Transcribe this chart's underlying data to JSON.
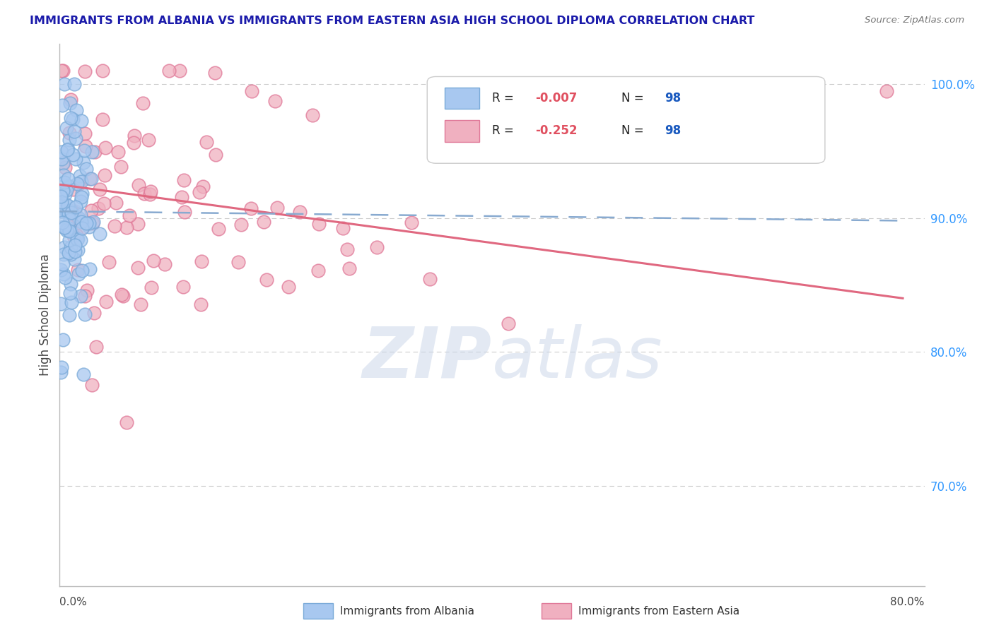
{
  "title": "IMMIGRANTS FROM ALBANIA VS IMMIGRANTS FROM EASTERN ASIA HIGH SCHOOL DIPLOMA CORRELATION CHART",
  "source": "Source: ZipAtlas.com",
  "ylabel": "High School Diploma",
  "yticks": [
    0.7,
    0.8,
    0.9,
    1.0
  ],
  "ytick_labels": [
    "70.0%",
    "80.0%",
    "90.0%",
    "100.0%"
  ],
  "xlim": [
    0.0,
    0.8
  ],
  "ylim": [
    0.625,
    1.03
  ],
  "legend_r1": "R = ",
  "legend_v1": "-0.007",
  "legend_n1": "N = ",
  "legend_nv1": "98",
  "legend_r2": "R = ",
  "legend_v2": "-0.252",
  "legend_n2": "N = ",
  "legend_nv2": "98",
  "color_albania": "#a8c8f0",
  "color_albania_edge": "#7aaad8",
  "color_eastern_asia": "#f0b0c0",
  "color_eastern_asia_edge": "#e07898",
  "color_albania_line": "#88aad0",
  "color_eastern_asia_line": "#e06880",
  "label_albania": "Immigrants from Albania",
  "label_eastern_asia": "Immigrants from Eastern Asia",
  "background_color": "#FFFFFF",
  "grid_color": "#cccccc",
  "title_color": "#1a1aaa",
  "axis_color": "#bbbbbb",
  "tick_color": "#3399ff",
  "albania_trendline": [
    0.905,
    0.898
  ],
  "eastern_trendline": [
    0.925,
    0.84
  ]
}
